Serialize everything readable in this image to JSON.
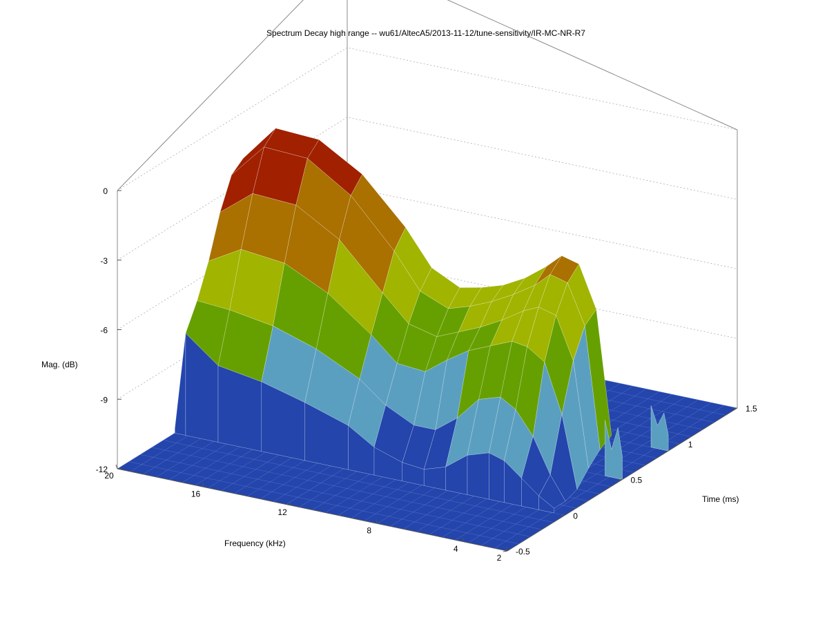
{
  "chart_data": {
    "type": "surface3d",
    "title": "Spectrum Decay high range -- wu61/AltecA5/2013-11-12/tune-sensitivity/IR-MC-NR-R7",
    "xlabel": "Frequency (kHz)",
    "ylabel": "Time (ms)",
    "zlabel": "Mag. (dB)",
    "x_ticks": [
      "20",
      "16",
      "12",
      "8",
      "4",
      "2"
    ],
    "x_tick_values": [
      20,
      16,
      12,
      8,
      4,
      2
    ],
    "y_ticks": [
      "-0.5",
      "0",
      "0.5",
      "1",
      "1.5"
    ],
    "y_tick_values": [
      -0.5,
      0,
      0.5,
      1,
      1.5
    ],
    "z_ticks": [
      "0",
      "-3",
      "-6",
      "-9",
      "-12"
    ],
    "z_tick_values": [
      0,
      -3,
      -6,
      -9,
      -12
    ],
    "xlim": [
      2,
      20
    ],
    "ylim": [
      -0.5,
      1.5
    ],
    "zlim": [
      -12,
      0
    ],
    "grid": "z-planes dotted on back walls",
    "colormap": [
      "#2345ac",
      "#5b9fc0",
      "#66a000",
      "#a0b400",
      "#aa7000",
      "#a02000"
    ],
    "slices": [
      {
        "time_ms": 0.0,
        "points": [
          [
            20,
            -11.8
          ],
          [
            19.5,
            -7.6
          ],
          [
            18,
            -8.7
          ],
          [
            16,
            -9.0
          ],
          [
            14,
            -9.5
          ],
          [
            12,
            -10.1
          ],
          [
            10.8,
            -10.8
          ],
          [
            9.5,
            -11.2
          ],
          [
            8.5,
            -11.3
          ],
          [
            7.5,
            -11.0
          ],
          [
            6.5,
            -10.3
          ],
          [
            5.5,
            -10.0
          ],
          [
            4.8,
            -10.2
          ],
          [
            4,
            -10.8
          ],
          [
            3.2,
            -11.4
          ],
          [
            2.5,
            -11.8
          ]
        ]
      },
      {
        "time_ms": 0.1,
        "points": [
          [
            20,
            -11.8
          ],
          [
            19.5,
            -6.5
          ],
          [
            18,
            -6.6
          ],
          [
            16,
            -6.9
          ],
          [
            14,
            -7.5
          ],
          [
            12,
            -8.4
          ],
          [
            10.8,
            -9.3
          ],
          [
            9.5,
            -9.9
          ],
          [
            8.5,
            -9.9
          ],
          [
            7.5,
            -9.2
          ],
          [
            6.5,
            -8.2
          ],
          [
            5.5,
            -7.9
          ],
          [
            4.8,
            -8.3
          ],
          [
            4,
            -9.3
          ],
          [
            3.2,
            -10.8
          ],
          [
            2.5,
            -11.8
          ]
        ]
      },
      {
        "time_ms": 0.2,
        "points": [
          [
            20,
            -11.8
          ],
          [
            19.5,
            -5.1
          ],
          [
            18,
            -4.3
          ],
          [
            16,
            -4.5
          ],
          [
            14,
            -5.4
          ],
          [
            12,
            -6.8
          ],
          [
            10.8,
            -7.8
          ],
          [
            9.5,
            -7.9
          ],
          [
            8.5,
            -7.2
          ],
          [
            7.5,
            -6.6
          ],
          [
            6.5,
            -6.2
          ],
          [
            5.5,
            -5.8
          ],
          [
            4.8,
            -5.9
          ],
          [
            4,
            -6.4
          ],
          [
            3.2,
            -8.5
          ],
          [
            2.5,
            -11.6
          ]
        ]
      },
      {
        "time_ms": 0.3,
        "points": [
          [
            20,
            -11.8
          ],
          [
            19.5,
            -3.3
          ],
          [
            18,
            -2.2
          ],
          [
            16,
            -2.3
          ],
          [
            14,
            -3.4
          ],
          [
            12,
            -5.3
          ],
          [
            10.8,
            -6.4
          ],
          [
            9.5,
            -6.7
          ],
          [
            8.5,
            -6.3
          ],
          [
            7.5,
            -5.9
          ],
          [
            6.5,
            -5.4
          ],
          [
            5.5,
            -4.8
          ],
          [
            4.8,
            -4.5
          ],
          [
            4,
            -4.7
          ],
          [
            3.2,
            -6.5
          ],
          [
            2.5,
            -11.0
          ]
        ]
      },
      {
        "time_ms": 0.4,
        "points": [
          [
            20,
            -11.8
          ],
          [
            19.5,
            -2.0
          ],
          [
            18,
            -0.5
          ],
          [
            16,
            -0.6
          ],
          [
            14,
            -1.8
          ],
          [
            12,
            -3.8
          ],
          [
            10.8,
            -5.3
          ],
          [
            9.5,
            -5.8
          ],
          [
            8.5,
            -5.5
          ],
          [
            7.5,
            -5.1
          ],
          [
            6.5,
            -4.6
          ],
          [
            5.5,
            -4.0
          ],
          [
            4.8,
            -3.4
          ],
          [
            4,
            -3.6
          ],
          [
            3.2,
            -5.3
          ],
          [
            2.5,
            -10.5
          ]
        ]
      },
      {
        "time_ms": 0.5,
        "points": [
          [
            20,
            -11.8
          ],
          [
            19.5,
            -1.6
          ],
          [
            18,
            0.0
          ],
          [
            16,
            -0.1
          ],
          [
            14,
            -1.2
          ],
          [
            12,
            -3.1
          ],
          [
            10.8,
            -4.6
          ],
          [
            9.5,
            -5.2
          ],
          [
            8.5,
            -5.0
          ],
          [
            7.5,
            -4.7
          ],
          [
            6.5,
            -4.2
          ],
          [
            5.5,
            -3.5
          ],
          [
            4.8,
            -2.9
          ],
          [
            4,
            -3.1
          ],
          [
            3.2,
            -4.9
          ],
          [
            2.5,
            -10.2
          ]
        ]
      }
    ],
    "ripples": [
      {
        "time_ms": 0.5,
        "points": [
          [
            2.8,
            -9.6
          ],
          [
            2.5,
            -10.8
          ],
          [
            2.2,
            -9.8
          ],
          [
            2.0,
            -11.0
          ]
        ]
      },
      {
        "time_ms": 0.9,
        "points": [
          [
            2.8,
            -10.2
          ],
          [
            2.5,
            -11.0
          ],
          [
            2.2,
            -10.4
          ],
          [
            2.0,
            -11.3
          ]
        ]
      }
    ]
  }
}
